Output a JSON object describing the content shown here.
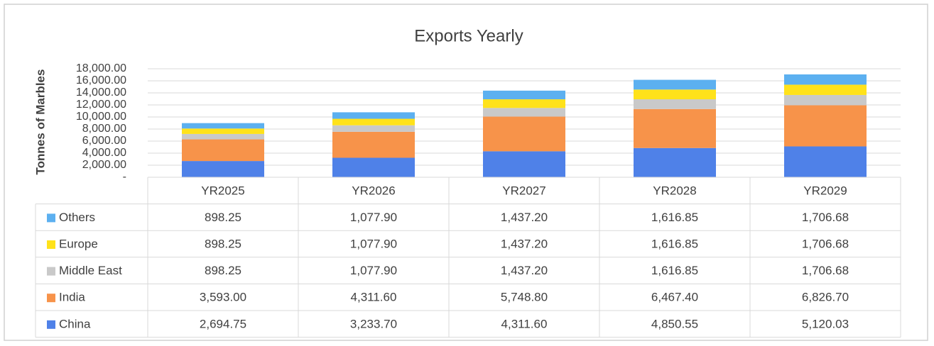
{
  "chart_data": {
    "type": "bar",
    "stacked": true,
    "title": "Exports Yearly",
    "y_label": "Tonnes of Marbles",
    "categories": [
      "YR2025",
      "YR2026",
      "YR2027",
      "YR2028",
      "YR2029"
    ],
    "series": [
      {
        "name": "China",
        "color": "#4f81e8",
        "values": [
          2694.75,
          3233.7,
          4311.6,
          4850.55,
          5120.03
        ],
        "value_labels": [
          "2,694.75",
          "3,233.70",
          "4,311.60",
          "4,850.55",
          "5,120.03"
        ]
      },
      {
        "name": "India",
        "color": "#f7934a",
        "values": [
          3593.0,
          4311.6,
          5748.8,
          6467.4,
          6826.7
        ],
        "value_labels": [
          "3,593.00",
          "4,311.60",
          "5,748.80",
          "6,467.40",
          "6,826.70"
        ]
      },
      {
        "name": "Middle East",
        "color": "#c9c9c9",
        "values": [
          898.25,
          1077.9,
          1437.2,
          1616.85,
          1706.68
        ],
        "value_labels": [
          "898.25",
          "1,077.90",
          "1,437.20",
          "1,616.85",
          "1,706.68"
        ]
      },
      {
        "name": "Europe",
        "color": "#ffe21a",
        "values": [
          898.25,
          1077.9,
          1437.2,
          1616.85,
          1706.68
        ],
        "value_labels": [
          "898.25",
          "1,077.90",
          "1,437.20",
          "1,616.85",
          "1,706.68"
        ]
      },
      {
        "name": "Others",
        "color": "#5cb0f0",
        "values": [
          898.25,
          1077.9,
          1437.2,
          1616.85,
          1706.68
        ],
        "value_labels": [
          "898.25",
          "1,077.90",
          "1,437.20",
          "1,616.85",
          "1,706.68"
        ]
      }
    ],
    "ylim": [
      0,
      18000
    ],
    "yticks": [
      {
        "value": 0,
        "label": "-"
      },
      {
        "value": 2000,
        "label": "2,000.00"
      },
      {
        "value": 4000,
        "label": "4,000.00"
      },
      {
        "value": 6000,
        "label": "6,000.00"
      },
      {
        "value": 8000,
        "label": "8,000.00"
      },
      {
        "value": 10000,
        "label": "10,000.00"
      },
      {
        "value": 12000,
        "label": "12,000.00"
      },
      {
        "value": 14000,
        "label": "14,000.00"
      },
      {
        "value": 16000,
        "label": "16,000.00"
      },
      {
        "value": 18000,
        "label": "18,000.00"
      }
    ],
    "grid": true
  }
}
